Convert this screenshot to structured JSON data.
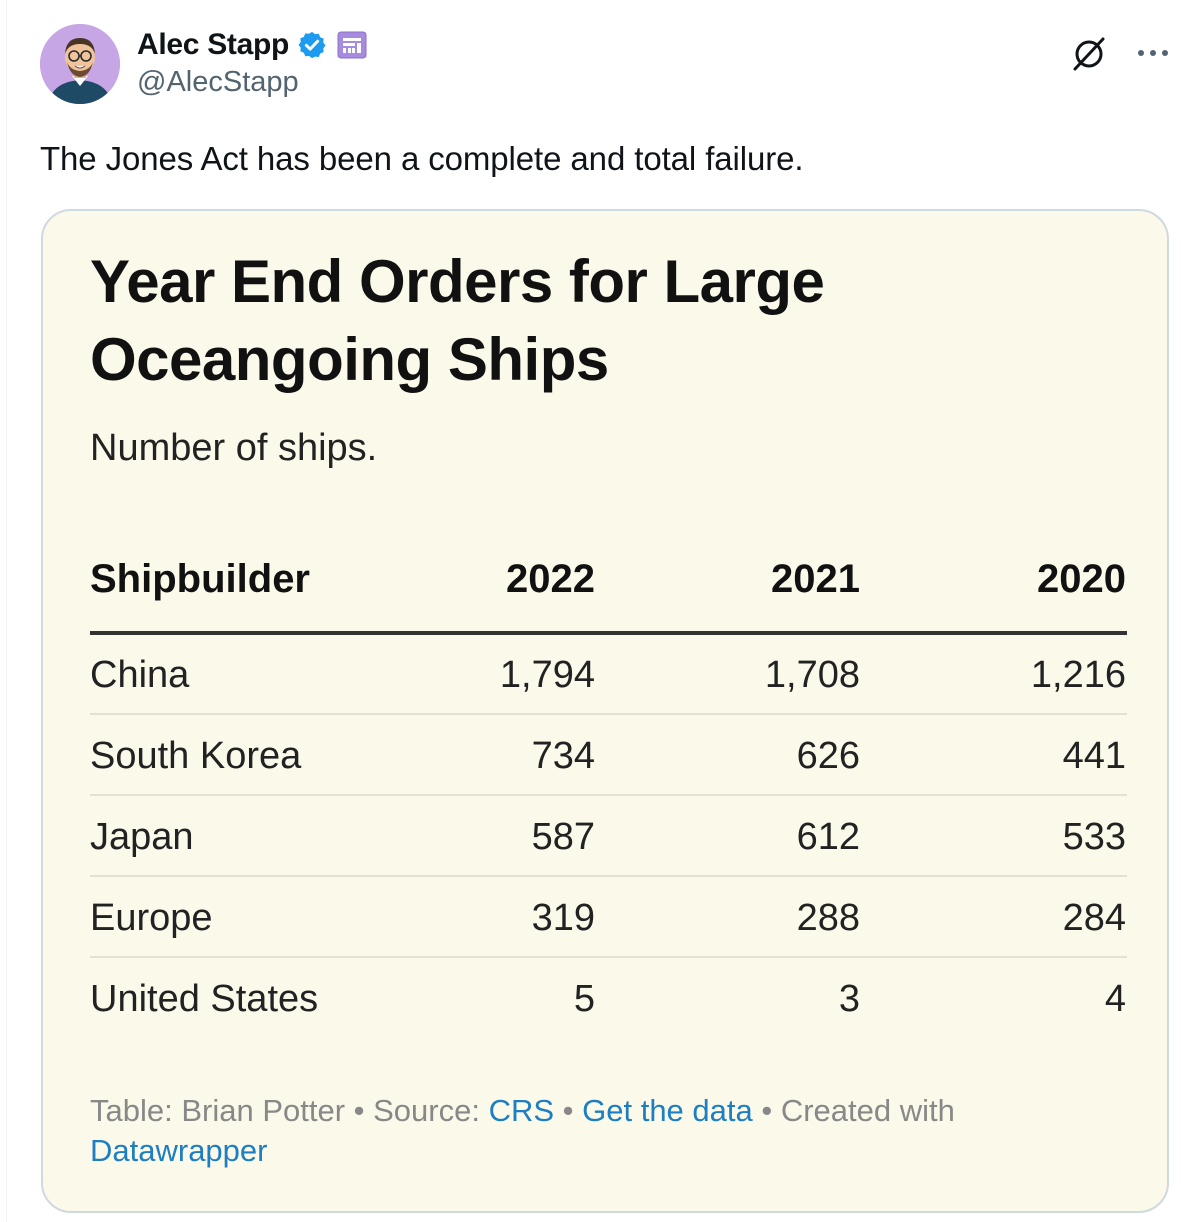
{
  "tweet": {
    "author_name": "Alec Stapp",
    "handle": "@AlecStapp",
    "text": "The Jones Act has been a complete and total failure."
  },
  "icons": {
    "verified": "verified-badge-icon",
    "affiliate": "affiliate-badge-icon",
    "grok": "grok-icon",
    "more": "more-options-icon"
  },
  "colors": {
    "verified_blue": "#1d9bf0",
    "affiliate_purple": "#a78bde",
    "card_background": "#fbf9ea",
    "link_blue": "#1d7ec2"
  },
  "card": {
    "title": "Year End Orders for Large Oceangoing Ships",
    "subtitle": "Number of ships.",
    "footer": {
      "table_credit": "Table: Brian Potter",
      "sep1": " • ",
      "source_label": "Source: ",
      "source_link": "CRS",
      "sep2": " • ",
      "data_link": "Get the data",
      "sep3": " • ",
      "created_with": "Created with ",
      "tool_link": "Datawrapper"
    }
  },
  "chart_data": {
    "type": "table",
    "title": "Year End Orders for Large Oceangoing Ships",
    "subtitle": "Number of ships.",
    "columns": [
      "Shipbuilder",
      "2022",
      "2021",
      "2020"
    ],
    "rows": [
      [
        "China",
        "1,794",
        "1,708",
        "1,216"
      ],
      [
        "South Korea",
        "734",
        "626",
        "441"
      ],
      [
        "Japan",
        "587",
        "612",
        "533"
      ],
      [
        "Europe",
        "319",
        "288",
        "284"
      ],
      [
        "United States",
        "5",
        "3",
        "4"
      ]
    ]
  }
}
